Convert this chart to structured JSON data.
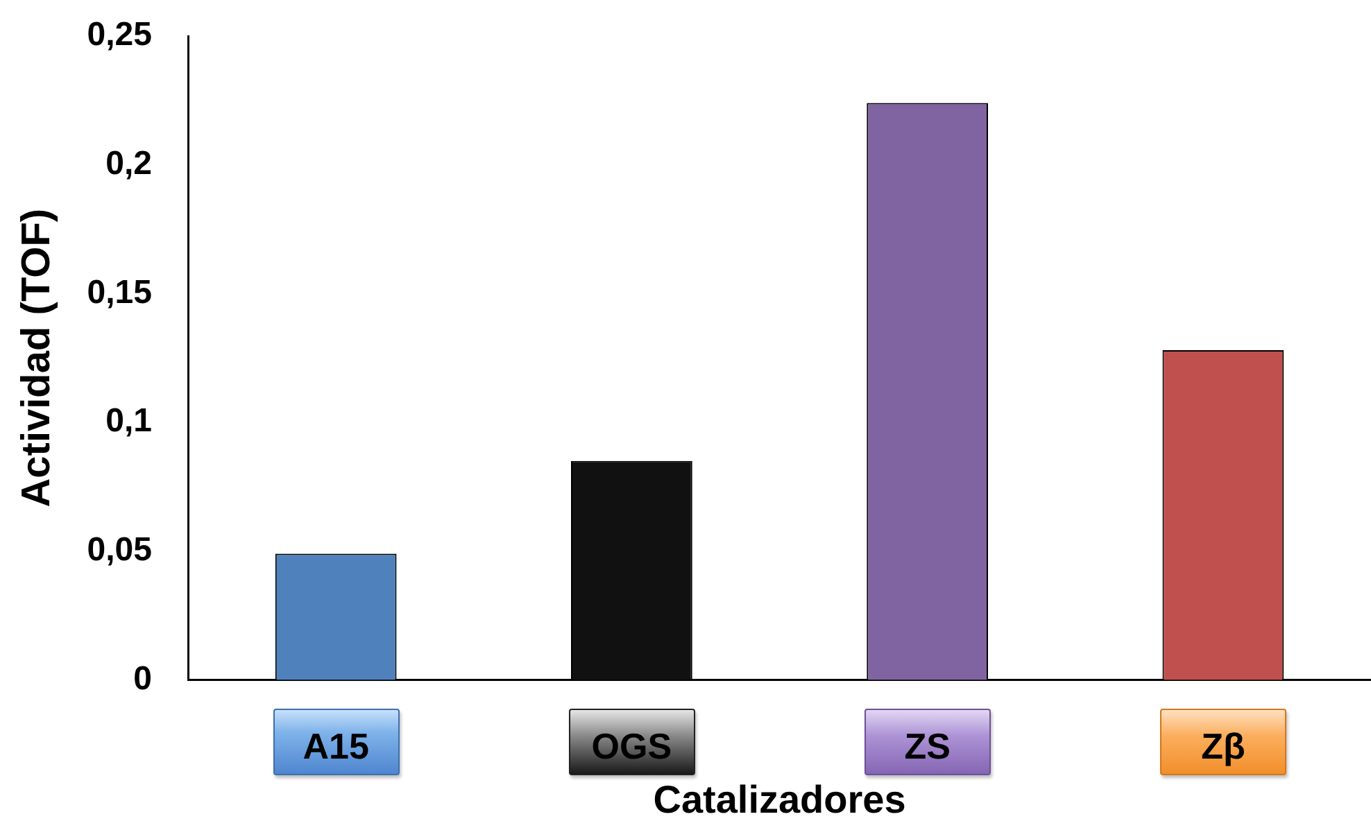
{
  "chart_data": {
    "type": "bar",
    "xlabel": "Catalizadores",
    "ylabel": "Actividad (TOF)",
    "categories": [
      "A15",
      "OGS",
      "ZS",
      "Zβ"
    ],
    "values": [
      0.049,
      0.085,
      0.224,
      0.128
    ],
    "colors": [
      "#4f81bd",
      "#111111",
      "#8064a2",
      "#c0504d"
    ],
    "ylim": [
      0,
      0.25
    ],
    "yticks": [
      0,
      {
        "value": 0.05,
        "label": "0,05"
      },
      {
        "value": 0.1,
        "label": "0,1"
      },
      {
        "value": 0.15,
        "label": "0,15"
      },
      {
        "value": 0.2,
        "label": "0,2"
      },
      {
        "value": 0.25,
        "label": "0,25"
      }
    ],
    "grid": false,
    "legend": false
  }
}
